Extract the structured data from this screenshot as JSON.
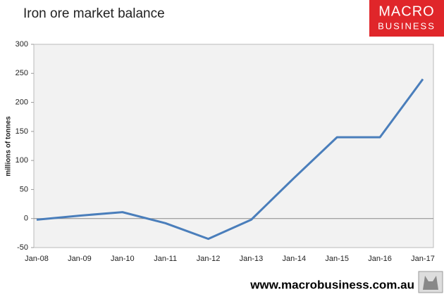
{
  "chart_data": {
    "type": "line",
    "title": "Iron ore market balance",
    "y_label": "millions of tonnes",
    "categories": [
      "Jan-08",
      "Jan-09",
      "Jan-10",
      "Jan-11",
      "Jan-12",
      "Jan-13",
      "Jan-14",
      "Jan-15",
      "Jan-16",
      "Jan-17"
    ],
    "values": [
      -2,
      5,
      11,
      -8,
      -35,
      -2,
      70,
      140,
      140,
      240
    ],
    "color": "#4a7ebb",
    "ylim": [
      -50,
      300
    ],
    "yticks": [
      -50,
      0,
      50,
      100,
      150,
      200,
      250,
      300
    ]
  },
  "logo": {
    "line1": "MACRO",
    "line2": "BUSINESS"
  },
  "footer": "www.macrobusiness.com.au"
}
